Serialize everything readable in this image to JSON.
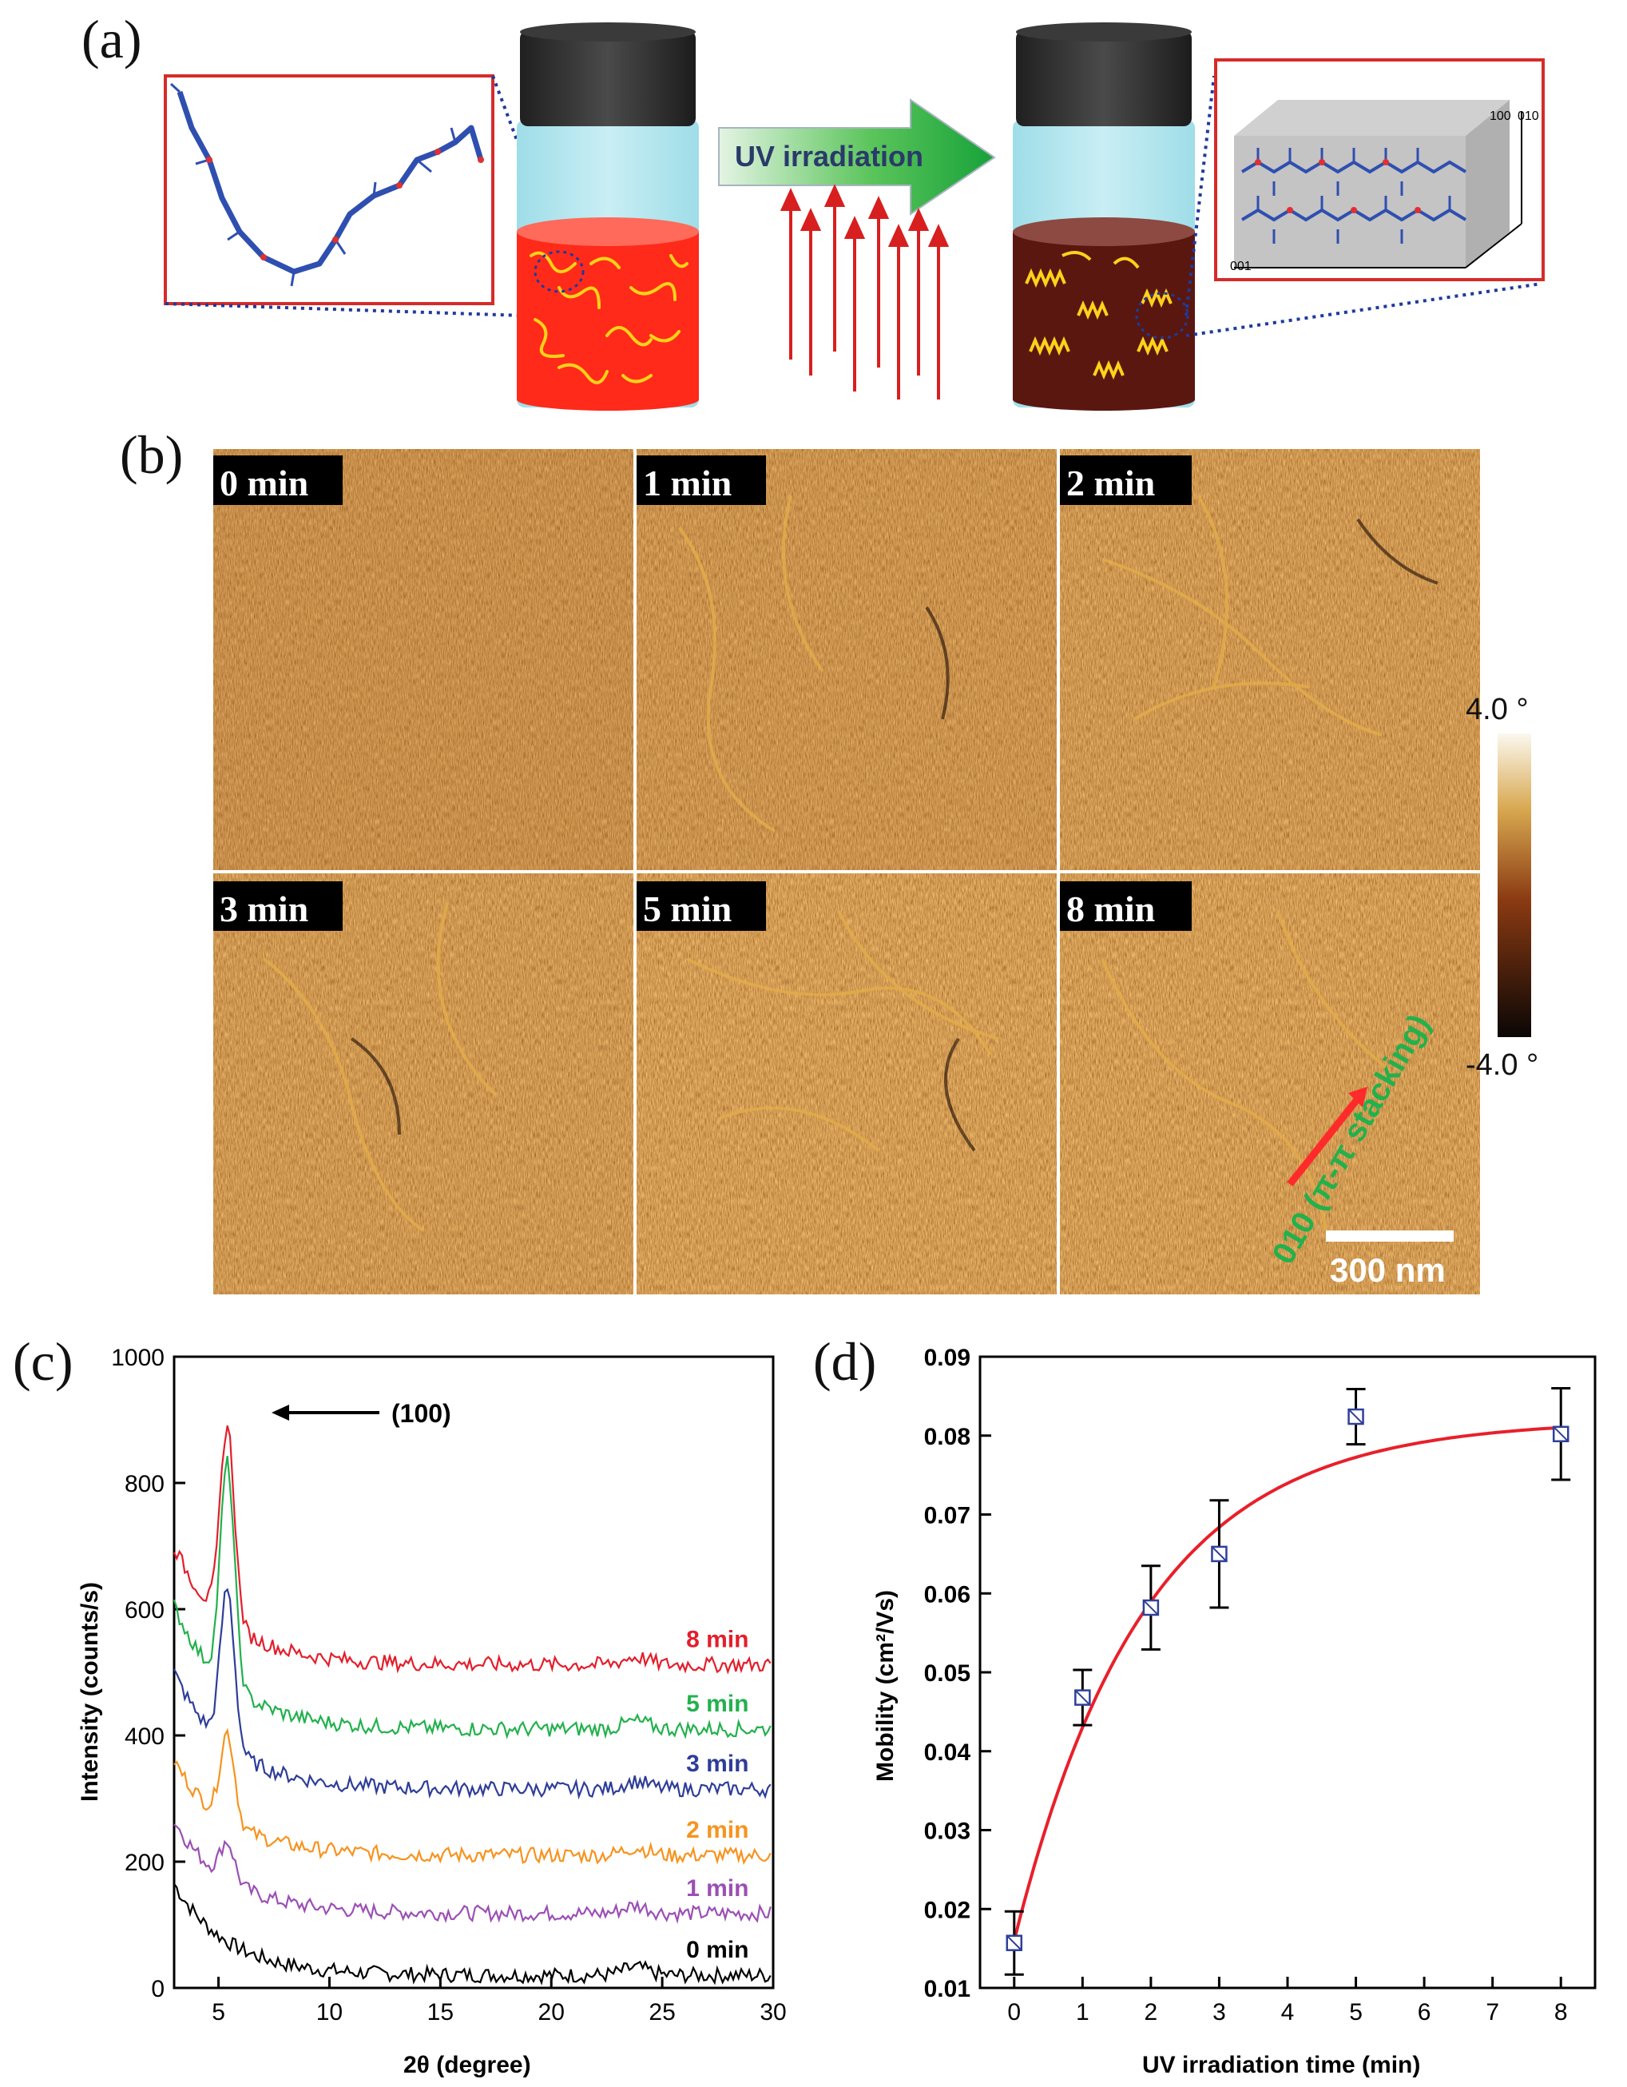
{
  "panel_labels": {
    "a": "(a)",
    "b": "(b)",
    "c": "(c)",
    "d": "(d)"
  },
  "panel_a": {
    "arrow_label": "UV irradiation",
    "axis_labels": [
      "100",
      "010",
      "001"
    ],
    "colors": {
      "solution_before": "#ff2a1a",
      "solution_after": "#5a1710",
      "chains": "#ffd21a",
      "arrow_green": "#22b14c",
      "uv_lines": "#d81f1f",
      "box_border": "#d62b2b",
      "polymer_backbone": "#2f4fb0"
    }
  },
  "panel_b": {
    "times": [
      "0 min",
      "1 min",
      "2 min",
      "3 min",
      "5 min",
      "8 min"
    ],
    "colorbar_max": "4.0 °",
    "colorbar_min": "-4.0 °",
    "annotation": "010 (π-π stacking)",
    "scale_bar": "300 nm"
  },
  "chart_data": [
    {
      "type": "line",
      "panel": "c",
      "xlabel": "2θ (degree)",
      "ylabel": "Intensity (counts/s)",
      "xlim": [
        3,
        30
      ],
      "ylim": [
        0,
        1000
      ],
      "xticks": [
        5,
        10,
        15,
        20,
        25,
        30
      ],
      "yticks": [
        0,
        200,
        400,
        600,
        800,
        1000
      ],
      "peak_annotation": "(100)",
      "series": [
        {
          "name": "0 min",
          "color": "#000000",
          "start": 165,
          "peak": 0,
          "end": 20
        },
        {
          "name": "1 min",
          "color": "#9b4fb5",
          "start": 265,
          "peak": 60,
          "end": 118
        },
        {
          "name": "2 min",
          "color": "#f7931e",
          "start": 360,
          "peak": 140,
          "end": 210
        },
        {
          "name": "3 min",
          "color": "#2e3d98",
          "start": 500,
          "peak": 250,
          "end": 315
        },
        {
          "name": "5 min",
          "color": "#22b14c",
          "start": 605,
          "peak": 350,
          "end": 410
        },
        {
          "name": "8 min",
          "color": "#e41e2b",
          "start": 700,
          "peak": 310,
          "end": 512
        }
      ]
    },
    {
      "type": "scatter",
      "panel": "d",
      "xlabel": "UV irradiation time (min)",
      "ylabel": "Mobility (cm²/Vs)",
      "xlim": [
        -0.5,
        8.5
      ],
      "ylim": [
        0.01,
        0.09
      ],
      "xticks": [
        0,
        1,
        2,
        3,
        4,
        5,
        6,
        7,
        8
      ],
      "yticks": [
        "0.01",
        "0.02",
        "0.03",
        "0.04",
        "0.05",
        "0.06",
        "0.07",
        "0.08",
        "0.09"
      ],
      "x": [
        0,
        1,
        2,
        3,
        5,
        8
      ],
      "y": [
        0.0157,
        0.0468,
        0.0582,
        0.065,
        0.0824,
        0.0802
      ],
      "error": [
        0.004,
        0.0035,
        0.0053,
        0.0068,
        0.0035,
        0.0058
      ],
      "fit": {
        "type": "exponential",
        "y0": 0.016,
        "ymax": 0.082,
        "tau": 1.9,
        "color": "#e8202a"
      }
    }
  ]
}
